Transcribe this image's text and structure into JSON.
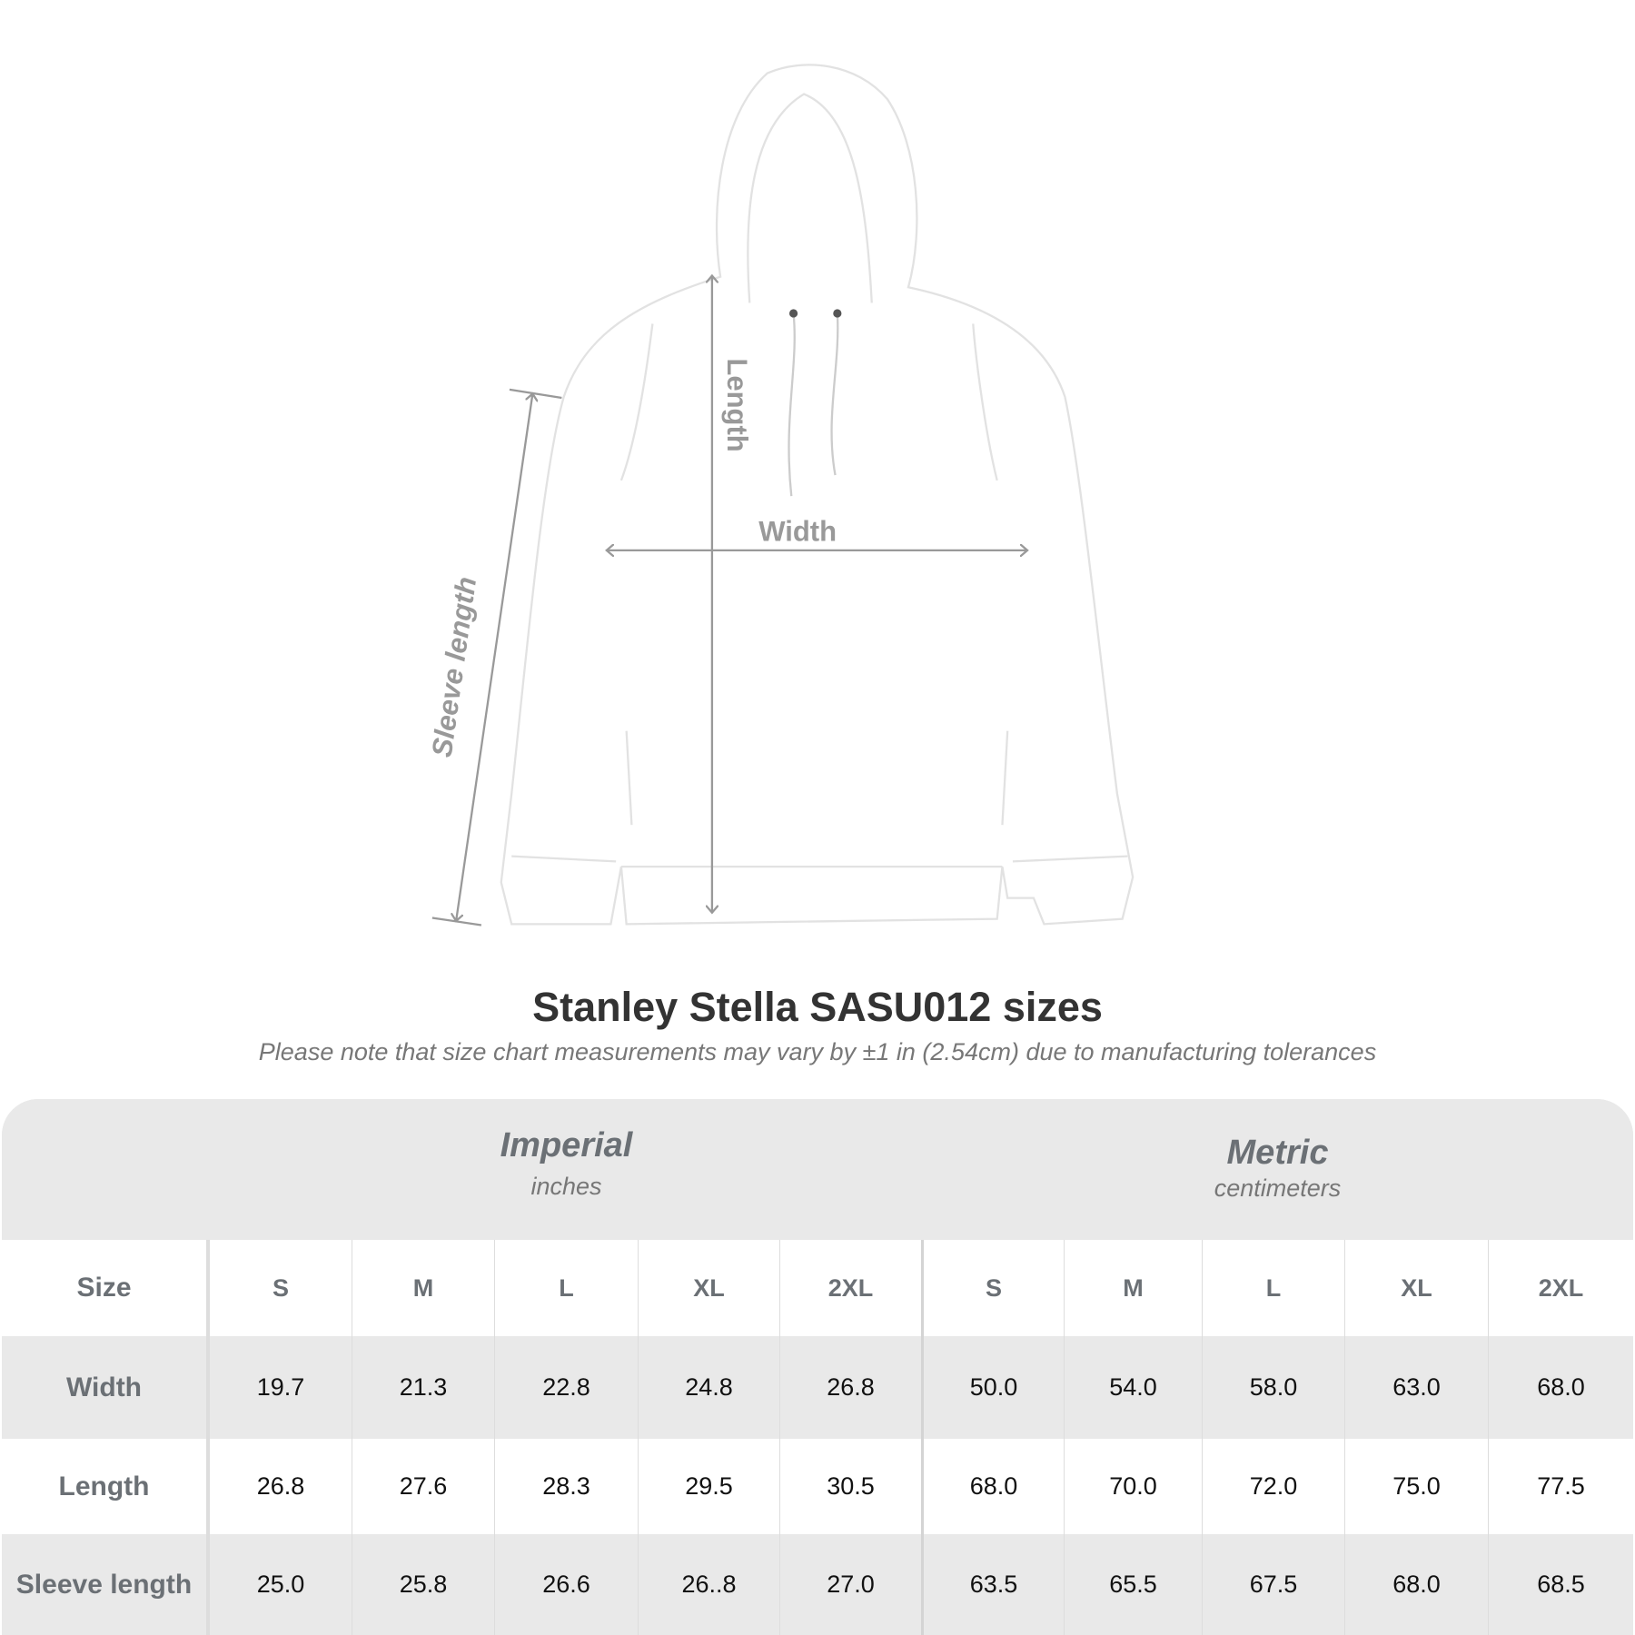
{
  "diagram": {
    "labels": {
      "length": "Length",
      "width": "Width",
      "sleeve_length": "Sleeve length"
    },
    "arrow_color": "#999999"
  },
  "title": "Stanley Stella SASU012  sizes",
  "subtitle": "Please note that size chart measurements may vary by ±1 in (2.54cm) due to manufacturing tolerances",
  "table": {
    "groups": [
      {
        "name": "Imperial",
        "unit": "inches"
      },
      {
        "name": "Metric",
        "unit": "centimeters"
      }
    ],
    "size_label": "Size",
    "sizes": [
      "S",
      "M",
      "L",
      "XL",
      "2XL",
      "S",
      "M",
      "L",
      "XL",
      "2XL"
    ],
    "rows": [
      {
        "label": "Width",
        "values": [
          "19.7",
          "21.3",
          "22.8",
          "24.8",
          "26.8",
          "50.0",
          "54.0",
          "58.0",
          "63.0",
          "68.0"
        ]
      },
      {
        "label": "Length",
        "values": [
          "26.8",
          "27.6",
          "28.3",
          "29.5",
          "30.5",
          "68.0",
          "70.0",
          "72.0",
          "75.0",
          "77.5"
        ]
      },
      {
        "label": "Sleeve length",
        "values": [
          "25.0",
          "25.8",
          "26.6",
          "26..8",
          "27.0",
          "63.5",
          "65.5",
          "67.5",
          "68.0",
          "68.5"
        ]
      }
    ]
  }
}
